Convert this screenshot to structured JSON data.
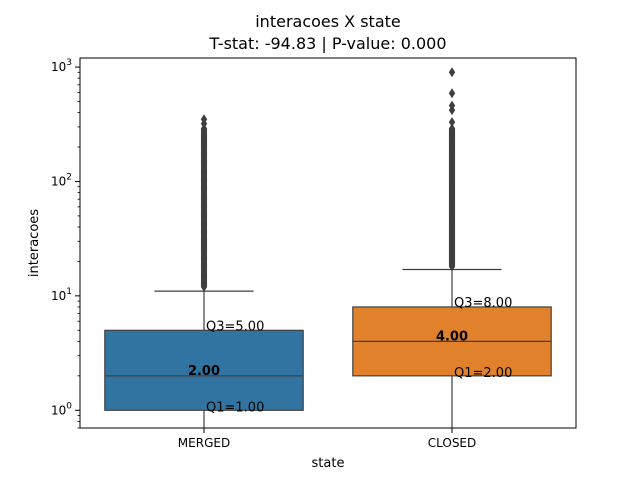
{
  "chart_data": {
    "type": "box",
    "title": "interacoes X state",
    "subtitle": "T-stat: -94.83 | P-value: 0.000",
    "xlabel": "state",
    "ylabel": "interacoes",
    "yscale": "log",
    "ylim": [
      0.7,
      1200
    ],
    "y_ticks": [
      {
        "value": 1,
        "base": "10",
        "exp": "0"
      },
      {
        "value": 10,
        "base": "10",
        "exp": "1"
      },
      {
        "value": 100,
        "base": "10",
        "exp": "2"
      },
      {
        "value": 1000,
        "base": "10",
        "exp": "3"
      }
    ],
    "categories": [
      "MERGED",
      "CLOSED"
    ],
    "grid": false,
    "boxes": [
      {
        "category": "MERGED",
        "color": "#3274a1",
        "min": 0.7,
        "q1": 1,
        "median": 2,
        "q3": 5,
        "whisker_high": 11,
        "outlier_range": [
          12,
          290
        ],
        "outliers_sparse": [
          320,
          350
        ],
        "labels": {
          "median": "2.00",
          "q1": "Q1=1.00",
          "q3": "Q3=5.00"
        }
      },
      {
        "category": "CLOSED",
        "color": "#e1812c",
        "min": 0.7,
        "q1": 2,
        "median": 4,
        "q3": 8,
        "whisker_high": 17,
        "outlier_range": [
          18,
          290
        ],
        "outliers_sparse": [
          330,
          420,
          460,
          590,
          900
        ],
        "labels": {
          "median": "4.00",
          "q1": "Q1=2.00",
          "q3": "Q3=8.00"
        }
      }
    ]
  }
}
